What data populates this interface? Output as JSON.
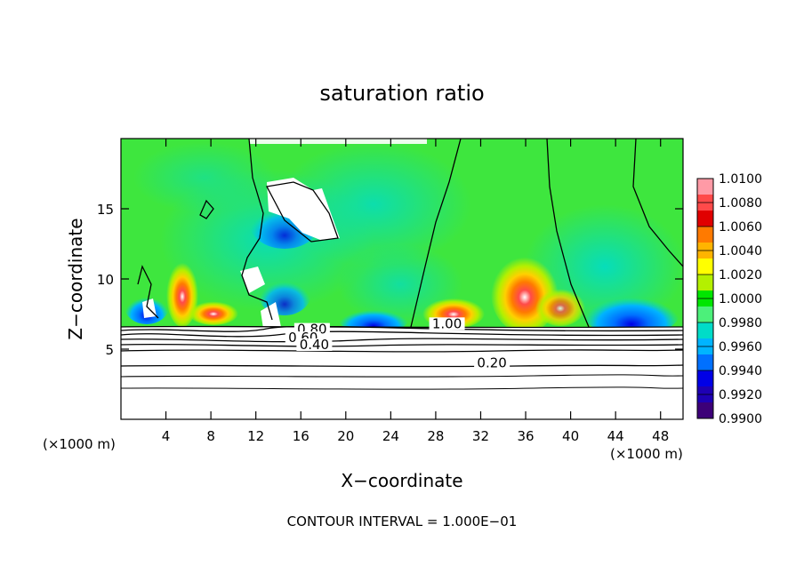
{
  "chart_data": {
    "type": "heatmap",
    "title": "saturation ratio",
    "xlabel": "X−coordinate",
    "ylabel": "Z−coordinate",
    "x_unit": "(×1000 m)",
    "y_unit": "(×1000 m)",
    "footer": "CONTOUR INTERVAL = 1.000E−01",
    "xlim": [
      0,
      50
    ],
    "ylim": [
      0,
      20
    ],
    "x_ticks": [
      4,
      8,
      12,
      16,
      20,
      24,
      28,
      32,
      36,
      40,
      44,
      48
    ],
    "y_ticks": [
      5,
      10,
      15
    ],
    "colorbar": {
      "labels": [
        "1.0100",
        "1.0080",
        "1.0060",
        "1.0040",
        "1.0020",
        "1.0000",
        "0.9980",
        "0.9960",
        "0.9940",
        "0.9920",
        "0.9900"
      ],
      "colors": [
        "#ff9aa6",
        "#ff4a4a",
        "#e00000",
        "#ff7a00",
        "#ffb400",
        "#ffff00",
        "#b4f000",
        "#00e600",
        "#4cf07a",
        "#00dcc8",
        "#00b4ff",
        "#0070ff",
        "#0000e6",
        "#1e00b4",
        "#3c0078"
      ]
    },
    "contour_labels": [
      {
        "text": "1.00",
        "x": 29,
        "z": 6.5
      },
      {
        "text": "0.80",
        "x": 17,
        "z": 6.1
      },
      {
        "text": "0.60",
        "x": 16.2,
        "z": 5.5
      },
      {
        "text": "0.40",
        "x": 17.2,
        "z": 5.0
      },
      {
        "text": "0.20",
        "x": 33,
        "z": 3.7
      }
    ]
  }
}
